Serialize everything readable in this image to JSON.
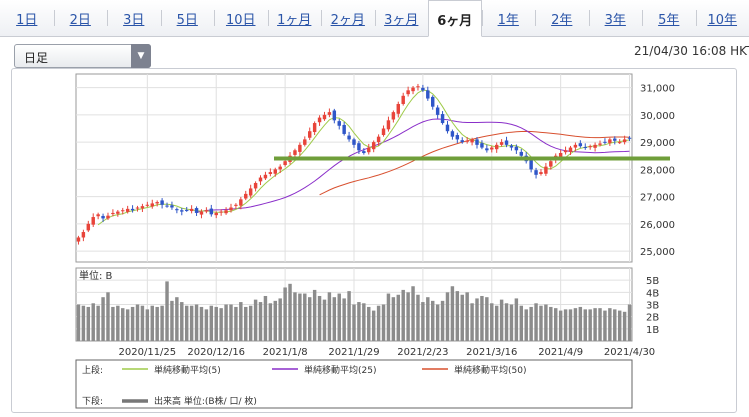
{
  "tabs": [
    {
      "label": "1日",
      "active": false
    },
    {
      "label": "2日",
      "active": false
    },
    {
      "label": "3日",
      "active": false
    },
    {
      "label": "5日",
      "active": false
    },
    {
      "label": "10日",
      "active": false
    },
    {
      "label": "1ヶ月",
      "active": false
    },
    {
      "label": "2ヶ月",
      "active": false
    },
    {
      "label": "3ヶ月",
      "active": false
    },
    {
      "label": "6ヶ月",
      "active": true
    },
    {
      "label": "1年",
      "active": false
    },
    {
      "label": "2年",
      "active": false
    },
    {
      "label": "3年",
      "active": false
    },
    {
      "label": "5年",
      "active": false
    },
    {
      "label": "10年",
      "active": false
    }
  ],
  "period_select": {
    "value": "日足"
  },
  "timestamp": "21/04/30 16:08 HKT",
  "colors": {
    "up": "#e8443a",
    "down": "#2f56c8",
    "ma5": "#9fcb4a",
    "ma25": "#8a2fc9",
    "ma50": "#d8502f",
    "support": "#6f9e3a",
    "volume": "#8c8c8c",
    "grid": "#e0e0e0"
  },
  "chart_data": {
    "type": "candlestick",
    "price_axis": {
      "ylim": [
        24600,
        31500
      ],
      "ticks": [
        25000,
        26000,
        27000,
        28000,
        29000,
        30000,
        31000
      ],
      "tick_labels": [
        "25,000",
        "26,000",
        "27,000",
        "28,000",
        "29,000",
        "30,000",
        "31,000"
      ]
    },
    "volume_axis": {
      "unit_label": "単位: B",
      "ylim": [
        0,
        6
      ],
      "ticks": [
        1,
        2,
        3,
        4,
        5
      ],
      "tick_labels": [
        "1B",
        "2B",
        "3B",
        "4B",
        "5B"
      ]
    },
    "x_tick_labels": [
      "2020/11/25",
      "2020/12/16",
      "2021/1/8",
      "2021/1/29",
      "2021/2/23",
      "2021/3/16",
      "2021/4/9",
      "2021/4/30"
    ],
    "x_tick_index": [
      14,
      28,
      42,
      56,
      70,
      84,
      98,
      112
    ],
    "support_level": 28400,
    "closes": [
      25500,
      25700,
      26000,
      26250,
      26350,
      26200,
      26300,
      26400,
      26450,
      26500,
      26550,
      26500,
      26600,
      26650,
      26700,
      26750,
      26800,
      26700,
      26650,
      26600,
      26500,
      26450,
      26500,
      26550,
      26400,
      26450,
      26500,
      26350,
      26400,
      26450,
      26500,
      26600,
      26700,
      26900,
      27100,
      27300,
      27500,
      27700,
      27800,
      27900,
      28000,
      28100,
      28300,
      28500,
      28700,
      28900,
      29100,
      29400,
      29700,
      29900,
      30000,
      30100,
      29800,
      29600,
      29300,
      29100,
      28900,
      28700,
      28600,
      28800,
      29000,
      29200,
      29500,
      29800,
      30100,
      30400,
      30700,
      30900,
      31000,
      31050,
      30900,
      30600,
      30300,
      30000,
      29700,
      29400,
      29200,
      29100,
      29000,
      29050,
      29100,
      28900,
      28800,
      28700,
      28800,
      28900,
      29000,
      28900,
      28800,
      28700,
      28500,
      28300,
      28000,
      27800,
      27900,
      28100,
      28300,
      28500,
      28600,
      28700,
      28800,
      28900,
      28850,
      28800,
      28850,
      28900,
      28950,
      29000,
      29100,
      29050,
      29000,
      29100,
      29150
    ],
    "volumes": [
      3.0,
      2.9,
      2.8,
      3.1,
      2.9,
      3.6,
      4.0,
      2.8,
      2.9,
      2.7,
      2.6,
      2.8,
      3.0,
      2.9,
      2.6,
      2.9,
      2.8,
      2.9,
      4.9,
      3.3,
      3.6,
      3.2,
      2.9,
      2.9,
      3.0,
      2.8,
      2.6,
      2.9,
      2.8,
      2.7,
      3.0,
      3.0,
      2.8,
      3.2,
      2.8,
      2.9,
      3.4,
      3.2,
      3.7,
      3.1,
      3.3,
      3.5,
      4.4,
      4.7,
      4.0,
      3.9,
      3.9,
      3.6,
      4.2,
      3.7,
      3.4,
      4.0,
      3.6,
      3.9,
      3.5,
      4.1,
      3.0,
      3.2,
      3.1,
      2.8,
      2.5,
      2.9,
      3.0,
      3.9,
      3.6,
      3.8,
      4.2,
      4.0,
      4.5,
      3.8,
      3.2,
      3.6,
      3.3,
      3.0,
      3.3,
      4.0,
      4.5,
      4.1,
      3.8,
      4.0,
      3.1,
      3.5,
      3.7,
      3.6,
      3.1,
      2.9,
      3.4,
      3.1,
      3.0,
      3.5,
      2.9,
      2.6,
      2.8,
      3.1,
      2.9,
      3.0,
      2.8,
      2.7,
      2.5,
      2.6,
      2.6,
      2.7,
      2.8,
      2.6,
      2.6,
      2.7,
      2.7,
      2.5,
      2.7,
      2.6,
      2.5,
      2.4,
      3.0
    ],
    "legend": {
      "upper_label": "上段:",
      "lower_label": "下段:",
      "series": [
        {
          "name": "単純移動平均(5)",
          "color": "#9fcb4a"
        },
        {
          "name": "単純移動平均(25)",
          "color": "#8a2fc9"
        },
        {
          "name": "単純移動平均(50)",
          "color": "#d8502f"
        }
      ],
      "volume_series": {
        "name": "出来高 単位:(B株/ 口/ 枚)",
        "color": "#777777"
      }
    }
  }
}
